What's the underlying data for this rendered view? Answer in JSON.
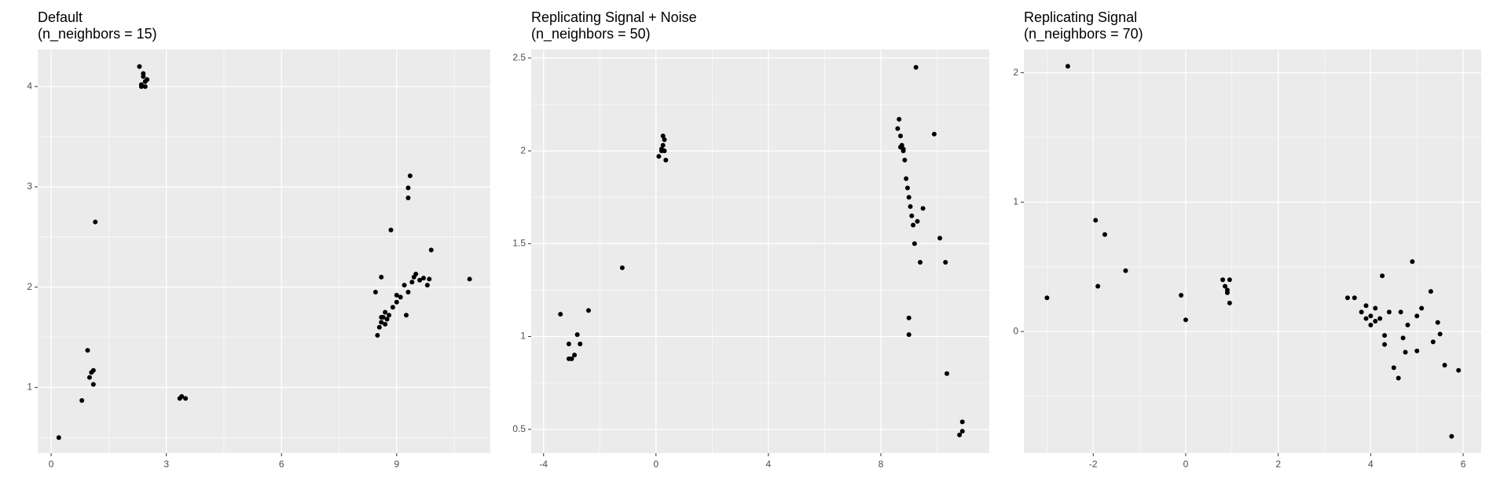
{
  "chart_data": [
    {
      "type": "scatter",
      "title": "Default",
      "subtitle": "(n_neighbors = 15)",
      "color": "#000000",
      "grid": true,
      "xlim": [
        -0.35,
        11.44
      ],
      "ylim": [
        0.345,
        4.37
      ],
      "xticks": [
        0,
        3,
        6,
        9
      ],
      "yticks": [
        1,
        2,
        3,
        4
      ],
      "x": [
        0.2,
        0.8,
        0.95,
        1.0,
        1.05,
        1.1,
        1.1,
        1.15,
        2.3,
        2.35,
        2.4,
        2.45,
        2.4,
        2.35,
        2.5,
        2.45,
        3.35,
        3.4,
        3.5,
        8.45,
        8.5,
        8.55,
        8.6,
        8.6,
        8.65,
        8.7,
        8.75,
        8.8,
        8.85,
        8.9,
        9.0,
        9.1,
        9.2,
        9.25,
        9.3,
        9.3,
        9.35,
        9.4,
        9.45,
        9.5,
        9.6,
        9.7,
        9.8,
        9.85,
        9.9,
        10.9,
        8.7,
        8.6,
        9.0,
        9.3
      ],
      "values": [
        0.5,
        0.87,
        1.37,
        1.1,
        1.15,
        1.17,
        1.03,
        2.65,
        4.2,
        4.0,
        4.1,
        4.05,
        4.13,
        4.02,
        4.07,
        4.0,
        0.89,
        0.91,
        0.89,
        1.95,
        1.52,
        1.6,
        2.1,
        1.65,
        1.7,
        1.75,
        1.68,
        1.72,
        2.57,
        1.8,
        1.85,
        1.9,
        2.02,
        1.72,
        2.99,
        2.89,
        3.11,
        2.05,
        2.1,
        2.13,
        2.07,
        2.09,
        2.02,
        2.08,
        2.37,
        2.08,
        1.63,
        1.7,
        1.92,
        1.95
      ]
    },
    {
      "type": "scatter",
      "title": "Replicating Signal + Noise",
      "subtitle": "(n_neighbors = 50)",
      "color": "#000000",
      "grid": true,
      "xlim": [
        -4.44,
        11.86
      ],
      "ylim": [
        0.372,
        2.546
      ],
      "xticks": [
        -4,
        0,
        4,
        8
      ],
      "yticks": [
        0.5,
        1.0,
        1.5,
        2.0,
        2.5
      ],
      "x": [
        -3.4,
        -3.1,
        -3.1,
        -3.0,
        -2.9,
        -2.8,
        -2.7,
        -2.4,
        -1.2,
        0.1,
        0.2,
        0.25,
        0.3,
        0.25,
        0.2,
        0.3,
        0.35,
        8.6,
        8.65,
        8.7,
        8.75,
        8.8,
        8.85,
        8.9,
        8.95,
        9.0,
        9.05,
        9.1,
        9.15,
        9.2,
        9.25,
        9.3,
        9.5,
        9.4,
        9.0,
        9.0,
        9.9,
        10.1,
        10.3,
        10.35,
        10.8,
        10.9,
        10.9,
        8.7,
        8.8
      ],
      "values": [
        1.12,
        0.96,
        0.88,
        0.88,
        0.9,
        1.01,
        0.96,
        1.14,
        1.37,
        1.97,
        2.0,
        2.03,
        2.06,
        2.08,
        2.01,
        2.0,
        1.95,
        2.12,
        2.17,
        2.08,
        2.03,
        2.0,
        1.95,
        1.85,
        1.8,
        1.75,
        1.7,
        1.65,
        1.6,
        1.5,
        2.45,
        1.62,
        1.69,
        1.4,
        1.1,
        1.01,
        2.09,
        1.53,
        1.4,
        0.8,
        0.47,
        0.49,
        0.54,
        2.02,
        2.01
      ]
    },
    {
      "type": "scatter",
      "title": "Replicating Signal",
      "subtitle": "(n_neighbors = 70)",
      "color": "#000000",
      "grid": true,
      "xlim": [
        -3.5,
        6.39
      ],
      "ylim": [
        -0.94,
        2.18
      ],
      "xticks": [
        -2,
        0,
        2,
        4,
        6
      ],
      "yticks": [
        0,
        1,
        2
      ],
      "x": [
        -3,
        -2.55,
        -1.95,
        -1.9,
        -1.75,
        -1.3,
        -0.1,
        0,
        0.8,
        0.85,
        0.9,
        0.95,
        0.9,
        0.95,
        3.5,
        3.65,
        3.8,
        3.9,
        4.0,
        4.0,
        4.1,
        4.2,
        4.25,
        4.3,
        4.3,
        4.4,
        4.5,
        4.6,
        4.65,
        4.7,
        4.75,
        4.8,
        4.9,
        5.0,
        5.0,
        5.1,
        5.3,
        5.35,
        5.45,
        5.5,
        5.6,
        5.75,
        5.9,
        3.9,
        4.1
      ],
      "values": [
        0.26,
        2.05,
        0.86,
        0.35,
        0.75,
        0.47,
        0.28,
        0.09,
        0.4,
        0.35,
        0.3,
        0.4,
        0.32,
        0.22,
        0.26,
        0.26,
        0.15,
        0.2,
        0.12,
        0.05,
        0.18,
        0.1,
        0.43,
        -0.03,
        -0.1,
        0.15,
        -0.28,
        -0.36,
        0.15,
        -0.05,
        -0.16,
        0.05,
        0.54,
        -0.15,
        0.12,
        0.18,
        0.31,
        -0.08,
        0.07,
        -0.02,
        -0.26,
        -0.81,
        -0.3,
        0.1,
        0.08
      ]
    }
  ]
}
